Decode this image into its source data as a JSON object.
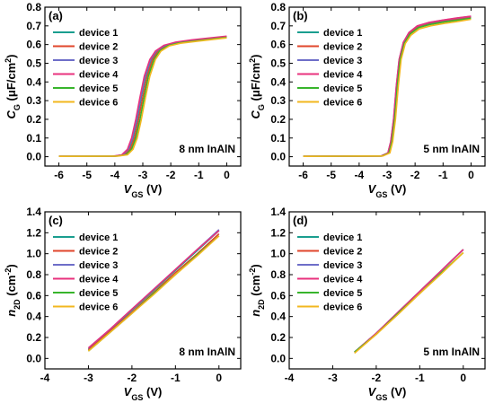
{
  "chart_data": [
    {
      "panel": "(a)",
      "type": "line",
      "annotation": "8 nm InAlN",
      "xlabel": "V_GS (V)",
      "ylabel": "C_G (μF/cm²)",
      "xlim": [
        -6.5,
        0.5
      ],
      "ylim": [
        -0.05,
        0.8
      ],
      "xticks": [
        -6,
        -5,
        -4,
        -3,
        -2,
        -1,
        0
      ],
      "yticks": [
        0.0,
        0.1,
        0.2,
        0.3,
        0.4,
        0.5,
        0.6,
        0.7,
        0.8
      ],
      "legend_position": "top-left",
      "series": [
        {
          "name": "device 1",
          "color": "#1a9e8f",
          "x": [
            -6,
            -4.0,
            -3.7,
            -3.5,
            -3.35,
            -3.2,
            -3.05,
            -2.9,
            -2.7,
            -2.5,
            -2.2,
            -1.8,
            -1.2,
            -0.6,
            0
          ],
          "y": [
            0.002,
            0.003,
            0.01,
            0.04,
            0.1,
            0.2,
            0.32,
            0.43,
            0.52,
            0.565,
            0.595,
            0.61,
            0.622,
            0.632,
            0.641
          ]
        },
        {
          "name": "device 2",
          "color": "#e0462b",
          "x": [
            -6,
            -4.0,
            -3.65,
            -3.45,
            -3.3,
            -3.15,
            -3.0,
            -2.85,
            -2.65,
            -2.45,
            -2.15,
            -1.75,
            -1.15,
            -0.55,
            0
          ],
          "y": [
            0.002,
            0.003,
            0.01,
            0.04,
            0.1,
            0.2,
            0.32,
            0.43,
            0.52,
            0.565,
            0.595,
            0.61,
            0.622,
            0.632,
            0.64
          ]
        },
        {
          "name": "device 3",
          "color": "#6e6ec8",
          "x": [
            -6,
            -4.05,
            -3.72,
            -3.52,
            -3.37,
            -3.22,
            -3.07,
            -2.92,
            -2.72,
            -2.52,
            -2.22,
            -1.82,
            -1.22,
            -0.62,
            0
          ],
          "y": [
            0.002,
            0.003,
            0.01,
            0.04,
            0.1,
            0.2,
            0.32,
            0.43,
            0.52,
            0.565,
            0.595,
            0.61,
            0.623,
            0.633,
            0.642
          ]
        },
        {
          "name": "device 4",
          "color": "#e8327e",
          "x": [
            -6,
            -4.08,
            -3.75,
            -3.55,
            -3.4,
            -3.25,
            -3.1,
            -2.95,
            -2.75,
            -2.55,
            -2.25,
            -1.85,
            -1.25,
            -0.65,
            0
          ],
          "y": [
            0.002,
            0.003,
            0.01,
            0.04,
            0.1,
            0.2,
            0.32,
            0.43,
            0.52,
            0.565,
            0.596,
            0.612,
            0.625,
            0.635,
            0.645
          ]
        },
        {
          "name": "device 5",
          "color": "#38b52c",
          "x": [
            -6,
            -3.95,
            -3.6,
            -3.4,
            -3.25,
            -3.1,
            -2.95,
            -2.8,
            -2.6,
            -2.4,
            -2.1,
            -1.7,
            -1.1,
            -0.5,
            0
          ],
          "y": [
            0.002,
            0.003,
            0.01,
            0.04,
            0.1,
            0.2,
            0.32,
            0.43,
            0.52,
            0.565,
            0.594,
            0.609,
            0.62,
            0.63,
            0.638
          ]
        },
        {
          "name": "device 6",
          "color": "#f2b71f",
          "x": [
            -6,
            -3.9,
            -3.55,
            -3.35,
            -3.2,
            -3.05,
            -2.9,
            -2.75,
            -2.55,
            -2.35,
            -2.05,
            -1.65,
            -1.05,
            -0.45,
            0
          ],
          "y": [
            0.002,
            0.003,
            0.01,
            0.04,
            0.1,
            0.2,
            0.32,
            0.43,
            0.52,
            0.565,
            0.593,
            0.607,
            0.618,
            0.628,
            0.636
          ]
        }
      ]
    },
    {
      "panel": "(b)",
      "type": "line",
      "annotation": "5 nm InAlN",
      "xlabel": "V_GS (V)",
      "ylabel": "C_G (μF/cm²)",
      "xlim": [
        -6.5,
        0.5
      ],
      "ylim": [
        -0.05,
        0.8
      ],
      "xticks": [
        -6,
        -5,
        -4,
        -3,
        -2,
        -1,
        0
      ],
      "yticks": [
        0.0,
        0.1,
        0.2,
        0.3,
        0.4,
        0.5,
        0.6,
        0.7,
        0.8
      ],
      "legend_position": "top-left",
      "series": [
        {
          "name": "device 1",
          "color": "#1a9e8f",
          "x": [
            -6,
            -3.2,
            -2.95,
            -2.85,
            -2.75,
            -2.65,
            -2.55,
            -2.4,
            -2.2,
            -1.9,
            -1.5,
            -1.0,
            -0.5,
            0
          ],
          "y": [
            0.002,
            0.004,
            0.02,
            0.08,
            0.2,
            0.38,
            0.52,
            0.61,
            0.66,
            0.695,
            0.712,
            0.725,
            0.735,
            0.745
          ]
        },
        {
          "name": "device 2",
          "color": "#e0462b",
          "x": [
            -6,
            -3.2,
            -2.95,
            -2.85,
            -2.75,
            -2.65,
            -2.55,
            -2.4,
            -2.2,
            -1.9,
            -1.5,
            -1.0,
            -0.5,
            0
          ],
          "y": [
            0.002,
            0.004,
            0.02,
            0.08,
            0.2,
            0.38,
            0.52,
            0.61,
            0.662,
            0.697,
            0.715,
            0.728,
            0.738,
            0.748
          ]
        },
        {
          "name": "device 3",
          "color": "#6e6ec8",
          "x": [
            -6,
            -3.22,
            -2.97,
            -2.87,
            -2.77,
            -2.67,
            -2.57,
            -2.42,
            -2.22,
            -1.92,
            -1.52,
            -1.02,
            -0.52,
            0
          ],
          "y": [
            0.002,
            0.004,
            0.02,
            0.08,
            0.2,
            0.38,
            0.52,
            0.612,
            0.664,
            0.699,
            0.717,
            0.73,
            0.741,
            0.751
          ]
        },
        {
          "name": "device 4",
          "color": "#e8327e",
          "x": [
            -6,
            -3.22,
            -2.97,
            -2.87,
            -2.77,
            -2.67,
            -2.57,
            -2.42,
            -2.22,
            -1.92,
            -1.52,
            -1.02,
            -0.52,
            0
          ],
          "y": [
            0.002,
            0.004,
            0.02,
            0.08,
            0.2,
            0.38,
            0.52,
            0.612,
            0.664,
            0.7,
            0.718,
            0.731,
            0.742,
            0.752
          ]
        },
        {
          "name": "device 5",
          "color": "#38b52c",
          "x": [
            -6,
            -3.18,
            -2.93,
            -2.83,
            -2.73,
            -2.63,
            -2.53,
            -2.38,
            -2.18,
            -1.88,
            -1.48,
            -0.98,
            -0.48,
            0
          ],
          "y": [
            0.002,
            0.004,
            0.02,
            0.08,
            0.2,
            0.38,
            0.52,
            0.608,
            0.656,
            0.69,
            0.707,
            0.72,
            0.73,
            0.74
          ]
        },
        {
          "name": "device 6",
          "color": "#f2b71f",
          "x": [
            -6,
            -3.15,
            -2.9,
            -2.8,
            -2.7,
            -2.6,
            -2.5,
            -2.35,
            -2.15,
            -1.85,
            -1.45,
            -0.95,
            -0.45,
            0
          ],
          "y": [
            0.002,
            0.004,
            0.02,
            0.08,
            0.2,
            0.38,
            0.52,
            0.605,
            0.65,
            0.684,
            0.7,
            0.713,
            0.724,
            0.735
          ]
        }
      ]
    },
    {
      "panel": "(c)",
      "type": "line",
      "annotation": "8 nm InAlN",
      "xlabel": "V_GS (V)",
      "ylabel": "n_2D (cm⁻²)",
      "xlim": [
        -4,
        0.5
      ],
      "ylim": [
        -0.1,
        1.4
      ],
      "xticks": [
        -4,
        -3,
        -2,
        -1,
        0
      ],
      "yticks": [
        0.0,
        0.2,
        0.4,
        0.6,
        0.8,
        1.0,
        1.2,
        1.4
      ],
      "legend_position": "top-left",
      "series": [
        {
          "name": "device 1",
          "color": "#1a9e8f",
          "x": [
            -3,
            -2.5,
            -2,
            -1.5,
            -1,
            -0.5,
            0
          ],
          "y": [
            0.09,
            0.27,
            0.46,
            0.65,
            0.84,
            1.03,
            1.22
          ]
        },
        {
          "name": "device 2",
          "color": "#e0462b",
          "x": [
            -3,
            -2.5,
            -2,
            -1.5,
            -1,
            -0.5,
            0
          ],
          "y": [
            0.08,
            0.26,
            0.44,
            0.63,
            0.82,
            1.0,
            1.19
          ]
        },
        {
          "name": "device 3",
          "color": "#6e6ec8",
          "x": [
            -3,
            -2.5,
            -2,
            -1.5,
            -1,
            -0.5,
            0
          ],
          "y": [
            0.1,
            0.28,
            0.47,
            0.66,
            0.85,
            1.04,
            1.23
          ]
        },
        {
          "name": "device 4",
          "color": "#e8327e",
          "x": [
            -3,
            -2.5,
            -2,
            -1.5,
            -1,
            -0.5,
            0
          ],
          "y": [
            0.1,
            0.28,
            0.47,
            0.66,
            0.85,
            1.04,
            1.22
          ]
        },
        {
          "name": "device 5",
          "color": "#38b52c",
          "x": [
            -3,
            -2.5,
            -2,
            -1.5,
            -1,
            -0.5,
            0
          ],
          "y": [
            0.07,
            0.25,
            0.43,
            0.62,
            0.8,
            0.99,
            1.17
          ]
        },
        {
          "name": "device 6",
          "color": "#f2b71f",
          "x": [
            -3,
            -2.5,
            -2,
            -1.5,
            -1,
            -0.5,
            0
          ],
          "y": [
            0.07,
            0.25,
            0.43,
            0.61,
            0.8,
            0.98,
            1.17
          ]
        }
      ]
    },
    {
      "panel": "(d)",
      "type": "line",
      "annotation": "5 nm InAlN",
      "xlabel": "V_GS (V)",
      "ylabel": "n_2D (cm⁻²)",
      "xlim": [
        -4,
        0.5
      ],
      "ylim": [
        -0.1,
        1.4
      ],
      "xticks": [
        -4,
        -3,
        -2,
        -1,
        0
      ],
      "yticks": [
        0.0,
        0.2,
        0.4,
        0.6,
        0.8,
        1.0,
        1.2,
        1.4
      ],
      "legend_position": "top-left",
      "series": [
        {
          "name": "device 1",
          "color": "#1a9e8f",
          "x": [
            -2.5,
            -2,
            -1.5,
            -1,
            -0.5,
            0
          ],
          "y": [
            0.06,
            0.24,
            0.44,
            0.64,
            0.84,
            1.04
          ]
        },
        {
          "name": "device 2",
          "color": "#e0462b",
          "x": [
            -2.5,
            -2,
            -1.5,
            -1,
            -0.5,
            0
          ],
          "y": [
            0.06,
            0.24,
            0.44,
            0.64,
            0.84,
            1.04
          ]
        },
        {
          "name": "device 3",
          "color": "#6e6ec8",
          "x": [
            -2.5,
            -2,
            -1.5,
            -1,
            -0.5,
            0
          ],
          "y": [
            0.06,
            0.24,
            0.44,
            0.64,
            0.84,
            1.04
          ]
        },
        {
          "name": "device 4",
          "color": "#e8327e",
          "x": [
            -2.5,
            -2,
            -1.5,
            -1,
            -0.5,
            0
          ],
          "y": [
            0.06,
            0.24,
            0.44,
            0.64,
            0.84,
            1.04
          ]
        },
        {
          "name": "device 5",
          "color": "#38b52c",
          "x": [
            -2.5,
            -2,
            -1.5,
            -1,
            -0.5,
            0
          ],
          "y": [
            0.06,
            0.23,
            0.43,
            0.62,
            0.82,
            1.01
          ]
        },
        {
          "name": "device 6",
          "color": "#f2b71f",
          "x": [
            -2.5,
            -2,
            -1.5,
            -1,
            -0.5,
            0
          ],
          "y": [
            0.05,
            0.23,
            0.42,
            0.62,
            0.81,
            1.01
          ]
        }
      ]
    }
  ]
}
